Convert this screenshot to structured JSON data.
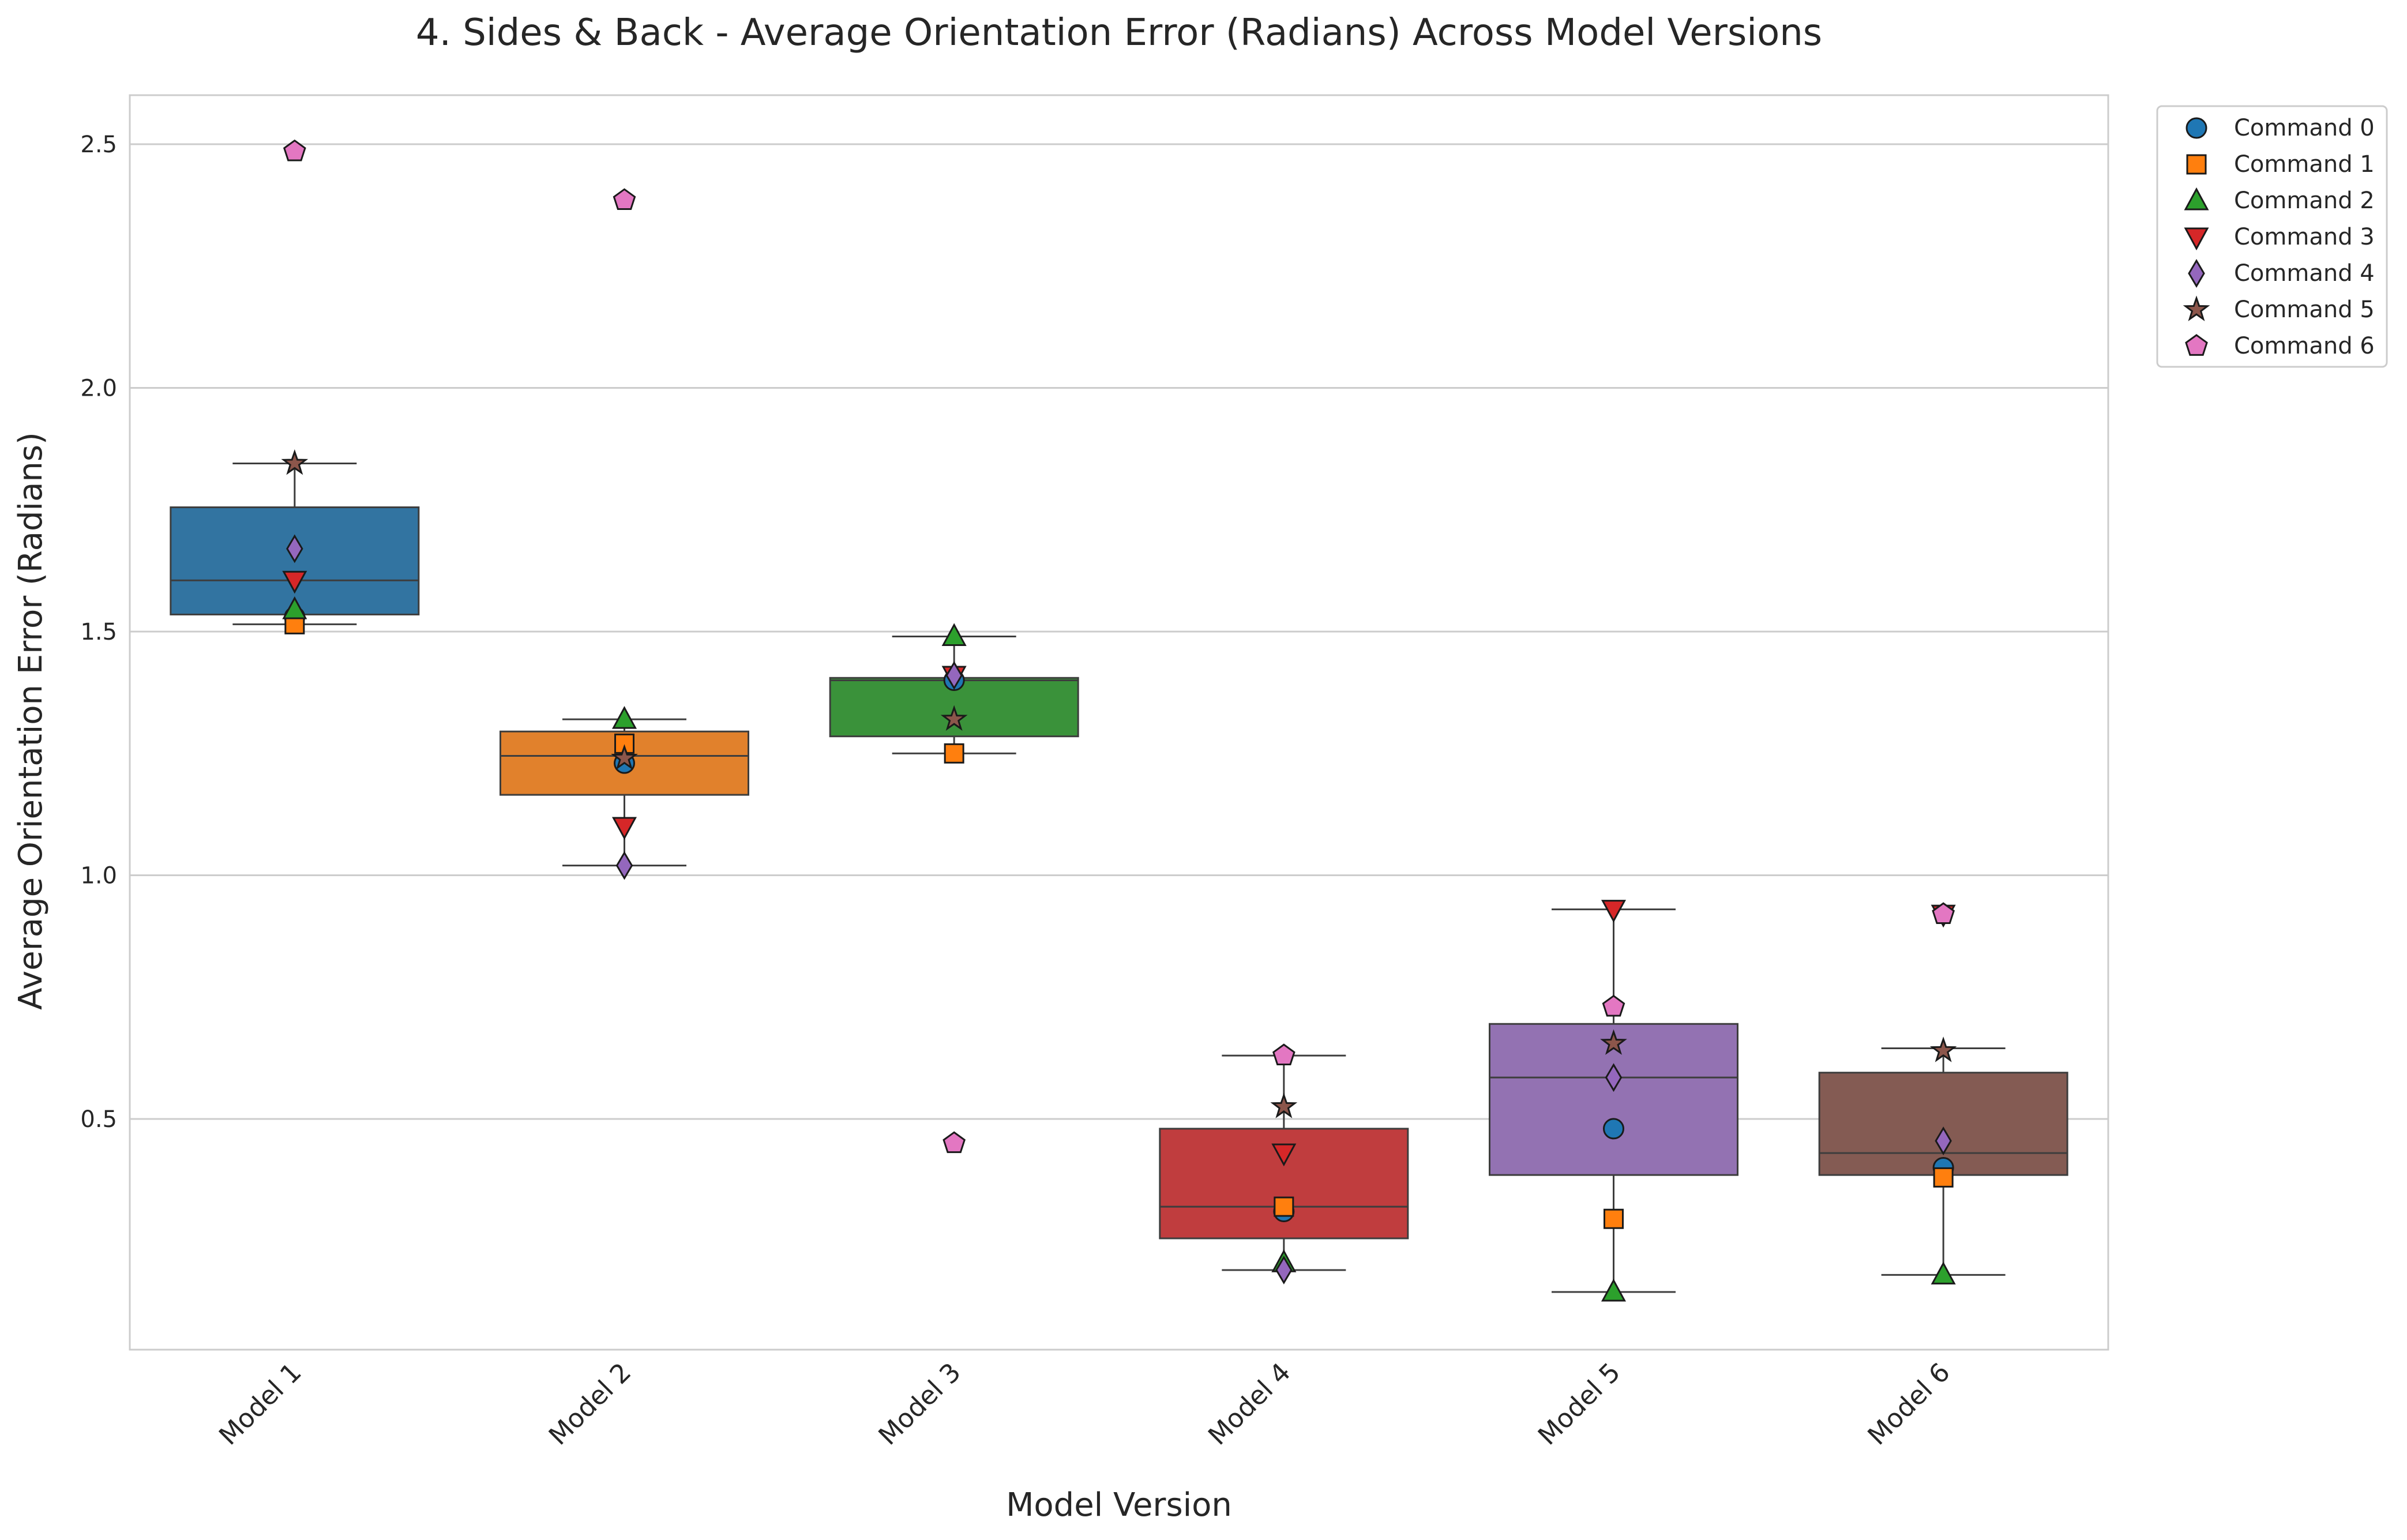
{
  "chart_data": {
    "type": "box",
    "title": "4. Sides & Back - Average Orientation Error (Radians) Across Model Versions",
    "xlabel": "Model Version",
    "ylabel": "Average Orientation Error (Radians)",
    "ylim": [
      0.0,
      2.6
    ],
    "yticks": [
      0.5,
      1.0,
      1.5,
      2.0,
      2.5
    ],
    "ytick_labels": [
      "0.5",
      "1.0",
      "1.5",
      "2.0",
      "2.5"
    ],
    "grid": "horizontal",
    "legend_position": "outside top-right",
    "categories": [
      "Model 1",
      "Model 2",
      "Model 3",
      "Model 4",
      "Model 5",
      "Model 6"
    ],
    "box_colors": [
      "#3274a1",
      "#e1812c",
      "#3a923a",
      "#c03d3e",
      "#9372b2",
      "#845b53"
    ],
    "boxes": [
      {
        "q1": 1.535,
        "median": 1.605,
        "q3": 1.755,
        "whisker_low": 1.515,
        "whisker_high": 1.845
      },
      {
        "q1": 1.165,
        "median": 1.245,
        "q3": 1.295,
        "whisker_low": 1.02,
        "whisker_high": 1.32
      },
      {
        "q1": 1.285,
        "median": 1.4,
        "q3": 1.405,
        "whisker_low": 1.25,
        "whisker_high": 1.49
      },
      {
        "q1": 0.255,
        "median": 0.32,
        "q3": 0.48,
        "whisker_low": 0.19,
        "whisker_high": 0.63
      },
      {
        "q1": 0.385,
        "median": 0.585,
        "q3": 0.695,
        "whisker_low": 0.145,
        "whisker_high": 0.93
      },
      {
        "q1": 0.385,
        "median": 0.43,
        "q3": 0.595,
        "whisker_low": 0.18,
        "whisker_high": 0.645
      }
    ],
    "series": [
      {
        "name": "Command 0",
        "marker": "circle",
        "color": "#1f77b4",
        "values": [
          1.53,
          1.23,
          1.4,
          0.31,
          0.48,
          0.4
        ]
      },
      {
        "name": "Command 1",
        "marker": "square",
        "color": "#ff7f0e",
        "values": [
          1.515,
          1.27,
          1.25,
          0.32,
          0.295,
          0.38
        ]
      },
      {
        "name": "Command 2",
        "marker": "triangle-up",
        "color": "#2ca02c",
        "values": [
          1.545,
          1.32,
          1.49,
          0.205,
          0.145,
          0.18
        ]
      },
      {
        "name": "Command 3",
        "marker": "triangle-down",
        "color": "#d62728",
        "values": [
          1.605,
          1.1,
          1.41,
          0.43,
          0.93,
          0.92
        ]
      },
      {
        "name": "Command 4",
        "marker": "diamond",
        "color": "#9467bd",
        "values": [
          1.67,
          1.02,
          1.41,
          0.19,
          0.585,
          0.455
        ]
      },
      {
        "name": "Command 5",
        "marker": "star",
        "color": "#8c564b",
        "values": [
          1.845,
          1.24,
          1.32,
          0.525,
          0.655,
          0.64
        ]
      },
      {
        "name": "Command 6",
        "marker": "pentagon",
        "color": "#e377c2",
        "values": [
          2.485,
          2.385,
          0.45,
          0.63,
          0.73,
          0.92
        ]
      }
    ]
  }
}
